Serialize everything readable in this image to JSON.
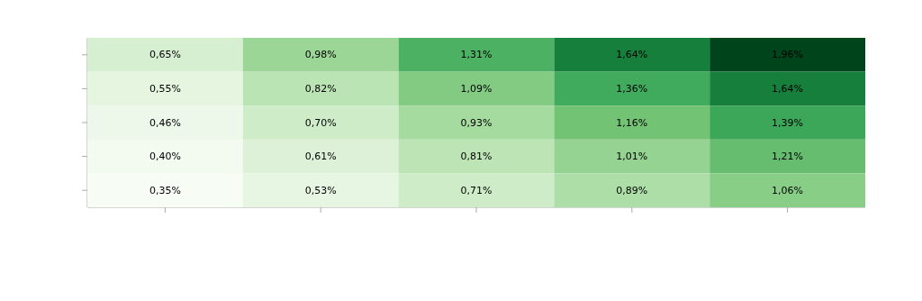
{
  "chart_data": {
    "type": "heatmap",
    "categories": [
      null,
      null,
      null,
      null,
      null
    ],
    "y_categories": [
      null,
      null,
      null,
      null,
      null
    ],
    "cells": [
      [
        0.65,
        0.98,
        1.31,
        1.64,
        1.96
      ],
      [
        0.55,
        0.82,
        1.09,
        1.36,
        1.64
      ],
      [
        0.46,
        0.7,
        0.93,
        1.16,
        1.39
      ],
      [
        0.4,
        0.61,
        0.81,
        1.01,
        1.21
      ],
      [
        0.35,
        0.53,
        0.71,
        0.89,
        1.06
      ]
    ],
    "cell_labels": [
      [
        "0,65%",
        "0,98%",
        "1,31%",
        "1,64%",
        "1,96%"
      ],
      [
        "0,55%",
        "0,82%",
        "1,09%",
        "1,36%",
        "1,64%"
      ],
      [
        "0,46%",
        "0,70%",
        "0,93%",
        "1,16%",
        "1,39%"
      ],
      [
        "0,40%",
        "0,61%",
        "0,81%",
        "1,01%",
        "1,21%"
      ],
      [
        "0,35%",
        "0,53%",
        "0,71%",
        "0,89%",
        "1,06%"
      ]
    ]
  }
}
